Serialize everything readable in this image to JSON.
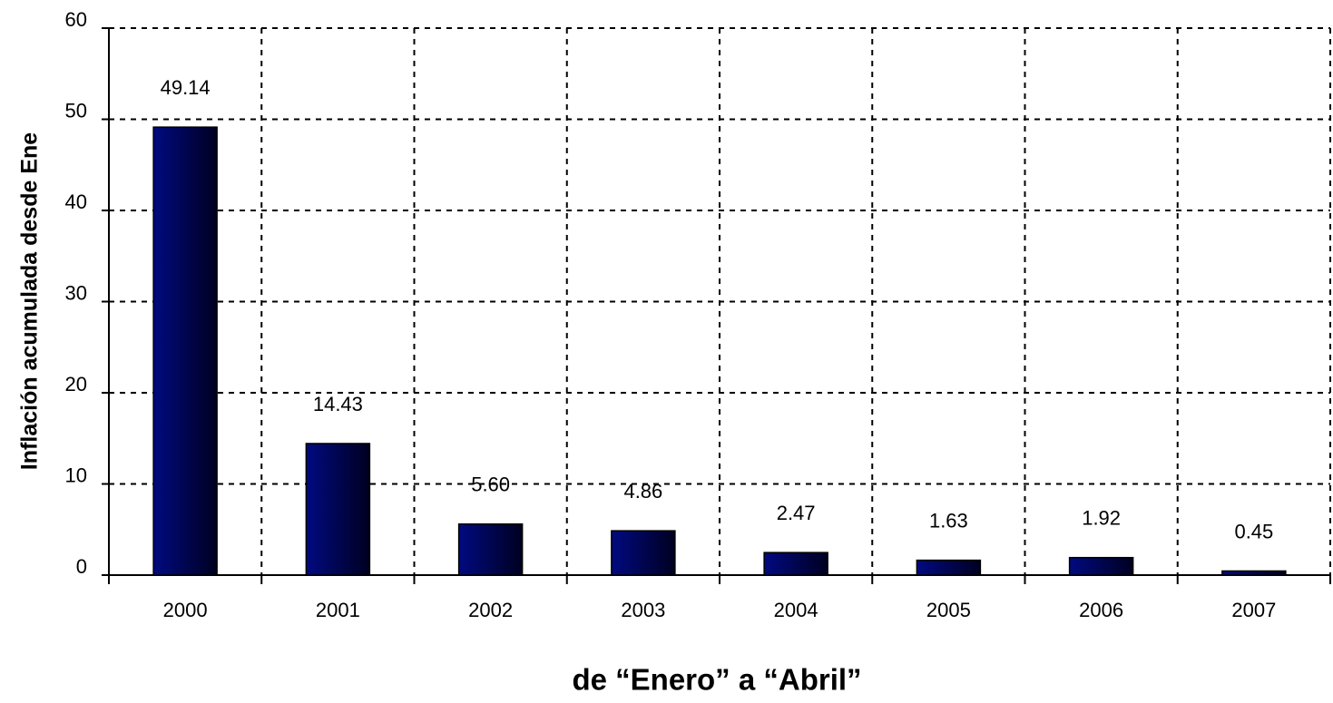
{
  "chart_data": {
    "type": "bar",
    "y_label": "Inflación acumulada desde Ene",
    "x_label": "de “Enero” a “Abril”",
    "categories": [
      "2000",
      "2001",
      "2002",
      "2003",
      "2004",
      "2005",
      "2006",
      "2007"
    ],
    "values": [
      49.14,
      14.43,
      5.6,
      4.86,
      2.47,
      1.63,
      1.92,
      0.45
    ],
    "value_labels": [
      "49.14",
      "14.43",
      "5.60",
      "4.86",
      "2.47",
      "1.63",
      "1.92",
      "0.45"
    ],
    "color": "#000a80",
    "ylim": [
      0,
      60
    ],
    "yticks": [
      0,
      10,
      20,
      30,
      40,
      50,
      60
    ],
    "grid": true
  }
}
